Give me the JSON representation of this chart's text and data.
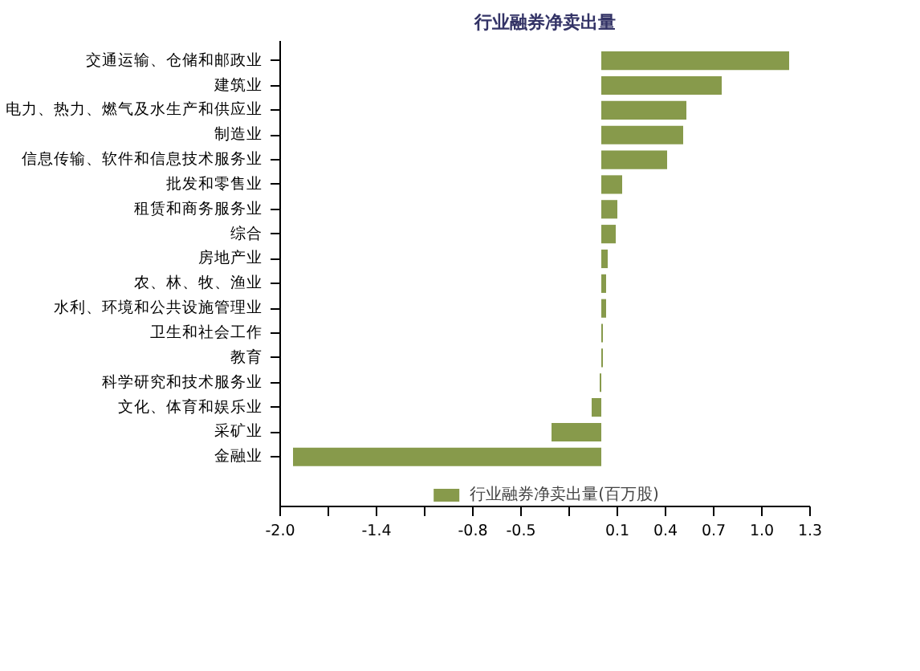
{
  "chart_data": {
    "type": "bar",
    "orientation": "horizontal",
    "title": "行业融券净卖出量",
    "categories": [
      "交通运输、仓储和邮政业",
      "建筑业",
      "电力、热力、燃气及水生产和供应业",
      "制造业",
      "信息传输、软件和信息技术服务业",
      "批发和零售业",
      "租赁和商务服务业",
      "综合",
      "房地产业",
      "农、林、牧、渔业",
      "水利、环境和公共设施管理业",
      "卫生和社会工作",
      "教育",
      "科学研究和技术服务业",
      "文化、体育和娱乐业",
      "采矿业",
      "金融业"
    ],
    "series": [
      {
        "name": "行业融券净卖出量(百万股)",
        "color": "#879a4b",
        "values": [
          1.17,
          0.75,
          0.53,
          0.51,
          0.41,
          0.13,
          0.1,
          0.09,
          0.04,
          0.03,
          0.03,
          0.01,
          0.01,
          -0.01,
          -0.06,
          -0.31,
          -1.92
        ]
      }
    ],
    "xlim": [
      -2.0,
      1.3
    ],
    "xticks": [
      {
        "value": -2.0,
        "label": "-2.0"
      },
      {
        "value": -1.7,
        "label": null
      },
      -1.4,
      {
        "value": -1.1,
        "label": null
      },
      -0.8,
      -0.5,
      {
        "value": -0.2,
        "label": null
      },
      0.1,
      0.4,
      0.7,
      {
        "value": 1.0,
        "label": "1.0"
      },
      1.3
    ],
    "grid": false,
    "legend": "bottom"
  }
}
